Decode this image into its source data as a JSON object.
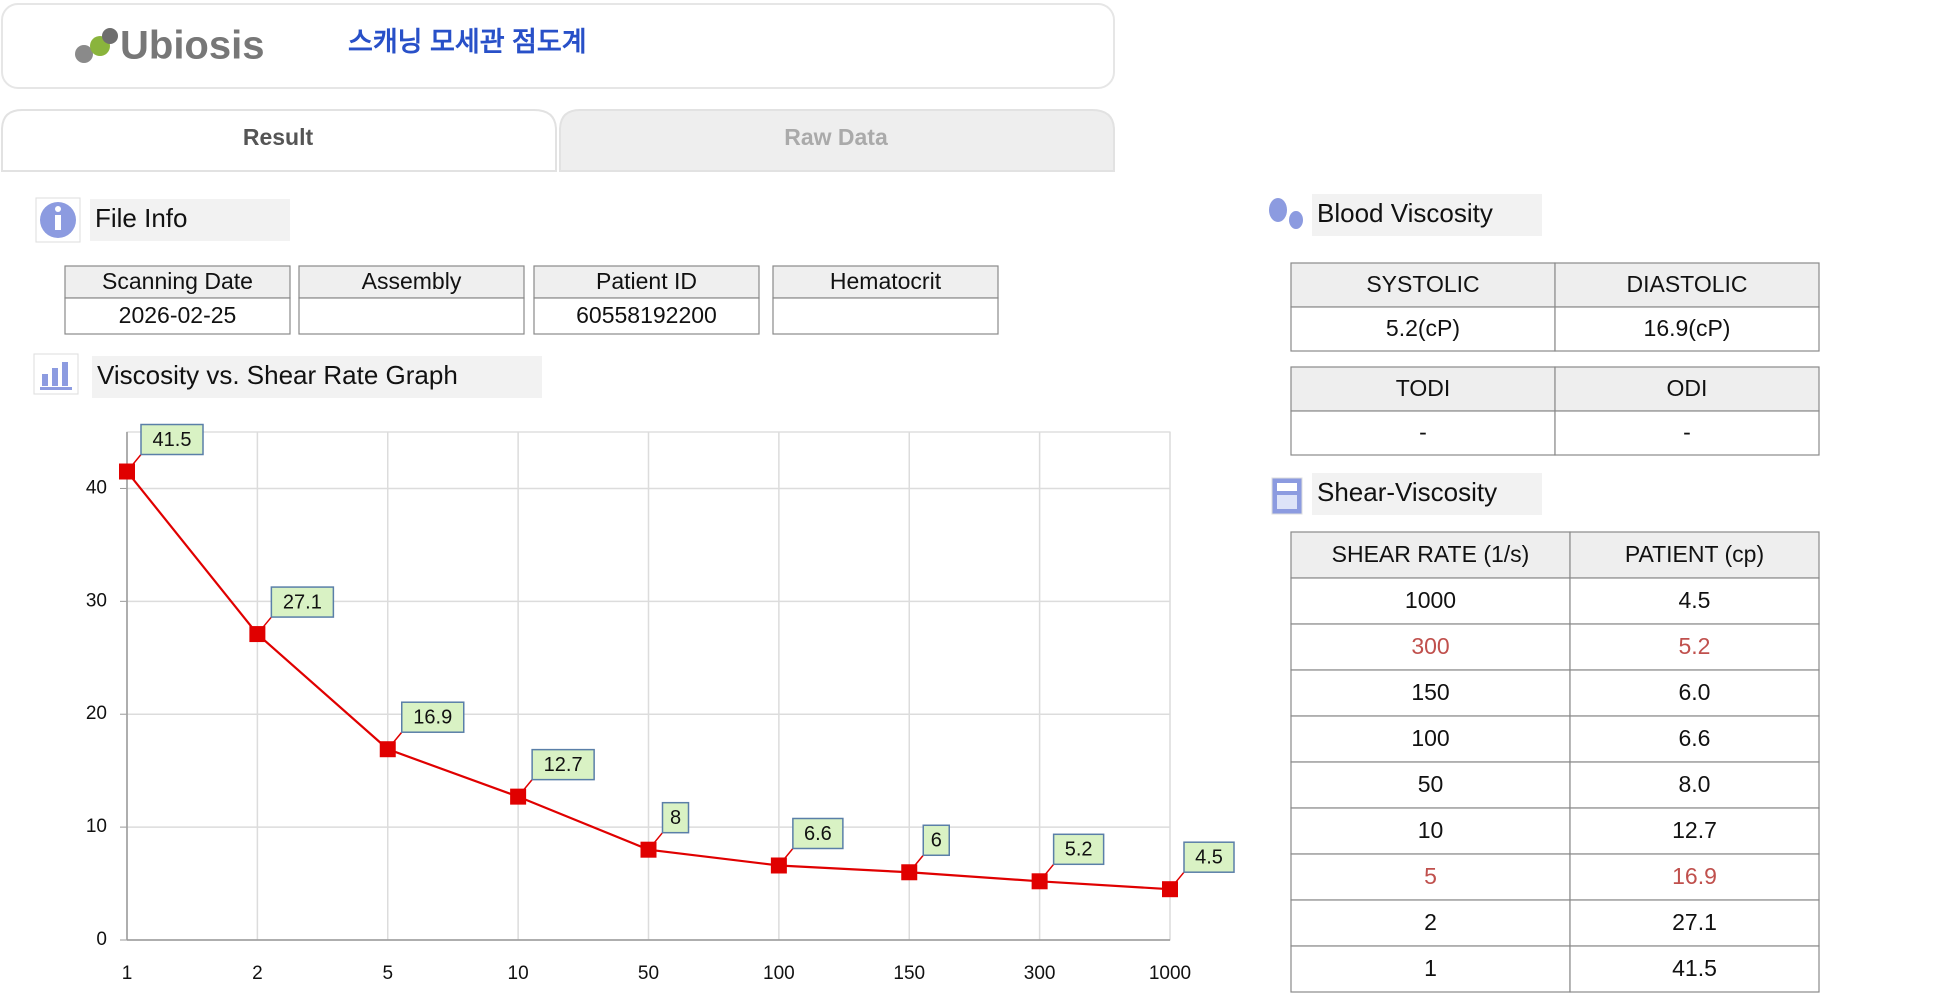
{
  "header": {
    "logo": "Ubiosis",
    "title": "스캐닝 모세관 점도계"
  },
  "tabs": {
    "items": [
      "Result",
      "Raw Data"
    ],
    "active": 0
  },
  "file_info": {
    "title": "File Info",
    "columns": [
      "Scanning Date",
      "Assembly",
      "Patient ID",
      "Hematocrit"
    ],
    "values": [
      "2026-02-25",
      null,
      "60558192200",
      null
    ]
  },
  "chart_data": {
    "type": "line",
    "title": "Viscosity vs. Shear Rate Graph",
    "categories": [
      "1",
      "2",
      "5",
      "10",
      "50",
      "100",
      "150",
      "300",
      "1000"
    ],
    "values": [
      41.5,
      27.1,
      16.9,
      12.7,
      8,
      6.6,
      6,
      5.2,
      4.5
    ],
    "color": "#e00000",
    "label_color": "#d9f2c4",
    "ylim": [
      0,
      45
    ],
    "yticks": [
      0,
      10,
      20,
      30,
      40
    ],
    "grid": true
  },
  "blood_viscosity": {
    "title": "Blood Viscosity",
    "tables": [
      {
        "header": [
          "SYSTOLIC",
          "DIASTOLIC"
        ],
        "row": [
          "5.2(cP)",
          "16.9(cP)"
        ]
      },
      {
        "header": [
          "TODI",
          "ODI"
        ],
        "row": [
          "-",
          "-"
        ]
      }
    ]
  },
  "shear_viscosity": {
    "title": "Shear-Viscosity",
    "header": [
      "SHEAR RATE (1/s)",
      "PATIENT (cp)"
    ],
    "rows": [
      [
        "1000",
        "4.5"
      ],
      [
        "300",
        "5.2"
      ],
      [
        "150",
        "6.0"
      ],
      [
        "100",
        "6.6"
      ],
      [
        "50",
        "8.0"
      ],
      [
        "10",
        "12.7"
      ],
      [
        "5",
        "16.9"
      ],
      [
        "2",
        "27.1"
      ],
      [
        "1",
        "41.5"
      ]
    ],
    "highlight_rows": [
      1,
      6
    ],
    "highlight_color": "#c0504d"
  }
}
